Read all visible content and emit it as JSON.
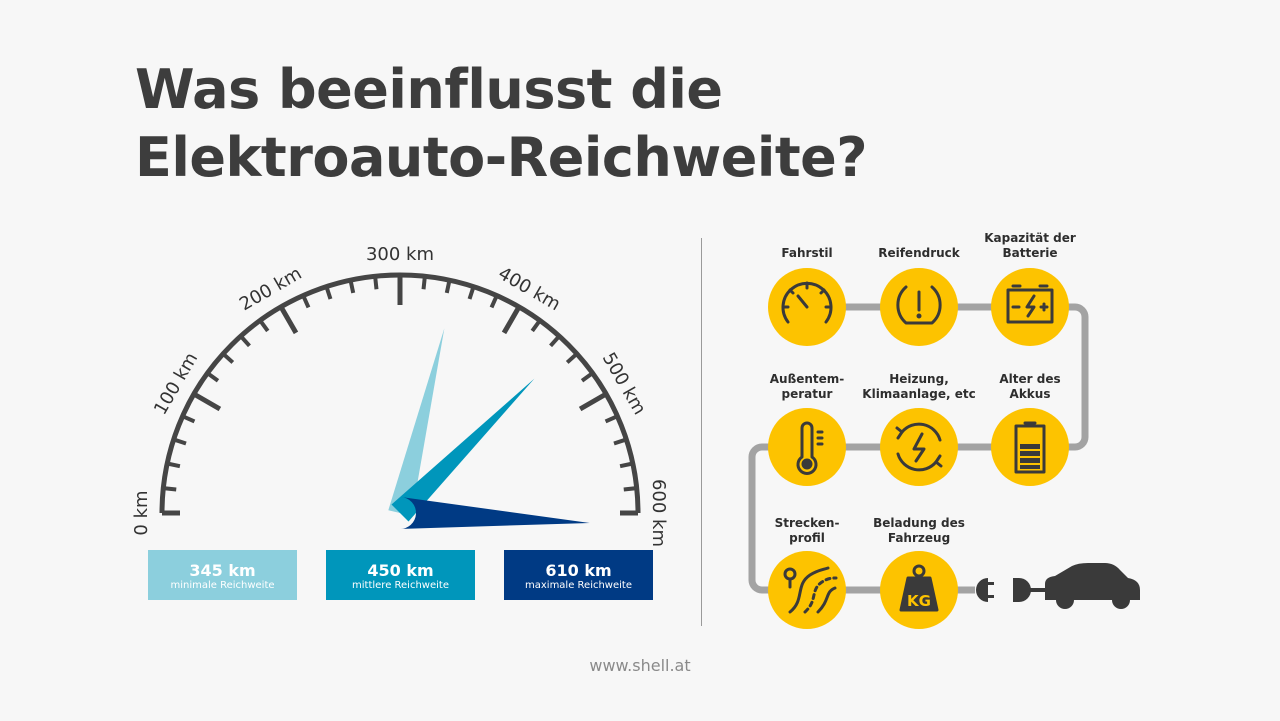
{
  "title_line1": "Was beeinflusst die",
  "title_line2": "Elektroauto-Reichweite?",
  "gauge": {
    "min": 0,
    "max": 600,
    "unit": "km",
    "tick_labels": [
      "0 km",
      "100 km",
      "200 km",
      "300 km",
      "400 km",
      "500 km",
      "600 km"
    ],
    "needles": [
      {
        "value": 345,
        "color": "#8ccfdd"
      },
      {
        "value": 450,
        "color": "#0096bb"
      },
      {
        "value": 610,
        "color": "#003a84"
      }
    ]
  },
  "ranges": [
    {
      "value": "345 km",
      "label": "minimale Reichweite",
      "color": "#8ccfdd"
    },
    {
      "value": "450 km",
      "label": "mittlere Reichweite",
      "color": "#0096bb"
    },
    {
      "value": "610 km",
      "label": "maximale Reichweite",
      "color": "#003a84"
    }
  ],
  "factors": [
    {
      "label": "Fahrstil",
      "icon": "speedometer-icon"
    },
    {
      "label": "Reifendruck",
      "icon": "tire-pressure-icon"
    },
    {
      "label": "Kapazität der Batterie",
      "icon": "car-battery-icon"
    },
    {
      "label": "Außentem- peratur",
      "icon": "thermometer-icon"
    },
    {
      "label": "Heizung, Klimaanlage, etc",
      "icon": "energy-cycle-icon"
    },
    {
      "label": "Alter des Akkus",
      "icon": "battery-level-icon"
    },
    {
      "label": "Strecken- profil",
      "icon": "road-icon"
    },
    {
      "label": "Beladung des Fahrzeug",
      "icon": "weight-icon"
    }
  ],
  "weight_text": "KG",
  "accent": "#fdc300",
  "footer": "www.shell.at"
}
